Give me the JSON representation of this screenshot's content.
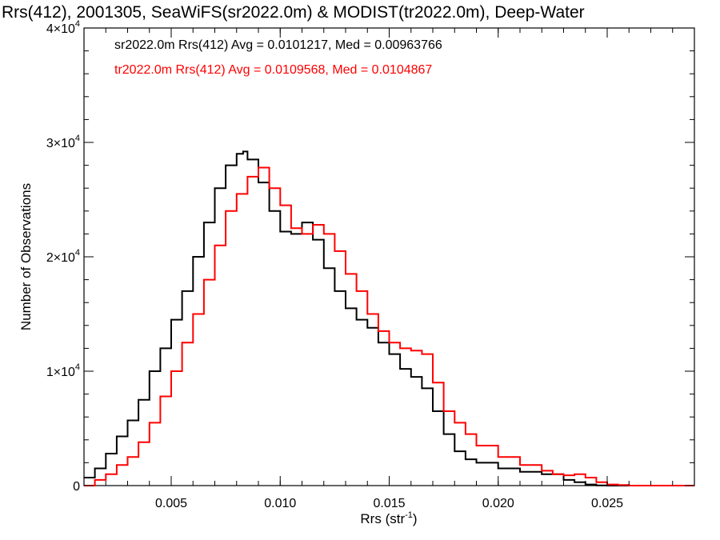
{
  "chart_data": {
    "type": "line",
    "title": "Rrs(412), 2001305, SeaWiFS(sr2022.0m) & MODIST(tr2022.0m), Deep-Water",
    "xlabel": "Rrs (str",
    "xlabel_sup": "-1",
    "xlabel_end": ")",
    "ylabel": "Number of Observations",
    "xlim": [
      0.001,
      0.029
    ],
    "ylim": [
      0,
      40000
    ],
    "x_ticks": [
      {
        "value": 0.005,
        "label": "0.005"
      },
      {
        "value": 0.01,
        "label": "0.010"
      },
      {
        "value": 0.015,
        "label": "0.015"
      },
      {
        "value": 0.02,
        "label": "0.020"
      },
      {
        "value": 0.025,
        "label": "0.025"
      }
    ],
    "y_ticks": [
      {
        "value": 0,
        "label": "0",
        "exp": ""
      },
      {
        "value": 10000,
        "label": "1×10",
        "exp": "4"
      },
      {
        "value": 20000,
        "label": "2×10",
        "exp": "4"
      },
      {
        "value": 30000,
        "label": "3×10",
        "exp": "4"
      },
      {
        "value": 40000,
        "label": "4×10",
        "exp": "4"
      }
    ],
    "grid": false,
    "series": [
      {
        "name": "sr2022.0m",
        "color": "#000000",
        "annotation": "sr2022.0m Rrs(412) Avg = 0.0101217, Med = 0.00963766",
        "x": [
          0.001,
          0.0015,
          0.002,
          0.0025,
          0.003,
          0.0035,
          0.004,
          0.0045,
          0.005,
          0.0055,
          0.006,
          0.0065,
          0.007,
          0.0075,
          0.008,
          0.0083,
          0.0085,
          0.009,
          0.0095,
          0.01,
          0.0105,
          0.011,
          0.0115,
          0.012,
          0.0125,
          0.013,
          0.0135,
          0.014,
          0.0145,
          0.015,
          0.0155,
          0.016,
          0.0165,
          0.017,
          0.0175,
          0.018,
          0.0185,
          0.019,
          0.02,
          0.021,
          0.022,
          0.023,
          0.0235,
          0.024,
          0.0245,
          0.025
        ],
        "y": [
          700,
          1500,
          2800,
          4300,
          5700,
          7500,
          10000,
          12000,
          14500,
          17000,
          20000,
          23000,
          26000,
          28000,
          29000,
          29200,
          28500,
          26500,
          24000,
          22200,
          22000,
          23000,
          21500,
          19000,
          17000,
          15500,
          14500,
          13800,
          12500,
          11500,
          10200,
          9500,
          8500,
          6500,
          4500,
          3000,
          2300,
          2000,
          1500,
          1200,
          1000,
          500,
          300,
          100,
          20,
          0
        ]
      },
      {
        "name": "tr2022.0m",
        "color": "#ff0000",
        "annotation": "tr2022.0m Rrs(412) Avg = 0.0109568, Med = 0.0104867",
        "x": [
          0.001,
          0.0015,
          0.002,
          0.0025,
          0.003,
          0.0035,
          0.004,
          0.0045,
          0.005,
          0.0055,
          0.006,
          0.0065,
          0.007,
          0.0075,
          0.008,
          0.0085,
          0.009,
          0.0095,
          0.01,
          0.0105,
          0.011,
          0.0115,
          0.012,
          0.0125,
          0.013,
          0.0135,
          0.014,
          0.0145,
          0.015,
          0.0155,
          0.016,
          0.0165,
          0.017,
          0.0175,
          0.018,
          0.0185,
          0.019,
          0.02,
          0.021,
          0.022,
          0.0225,
          0.023,
          0.0235,
          0.024,
          0.0245,
          0.025,
          0.0255,
          0.026
        ],
        "y": [
          0,
          500,
          1000,
          1800,
          2500,
          3800,
          5500,
          7800,
          10000,
          12500,
          15000,
          18000,
          21000,
          24000,
          25500,
          27000,
          27800,
          26000,
          24500,
          22500,
          22000,
          22800,
          22000,
          20500,
          18500,
          17000,
          15000,
          13500,
          12500,
          12000,
          11800,
          11500,
          9000,
          6500,
          5500,
          4500,
          3500,
          2500,
          1800,
          1300,
          1000,
          900,
          1000,
          700,
          300,
          100,
          50,
          0
        ]
      }
    ]
  }
}
